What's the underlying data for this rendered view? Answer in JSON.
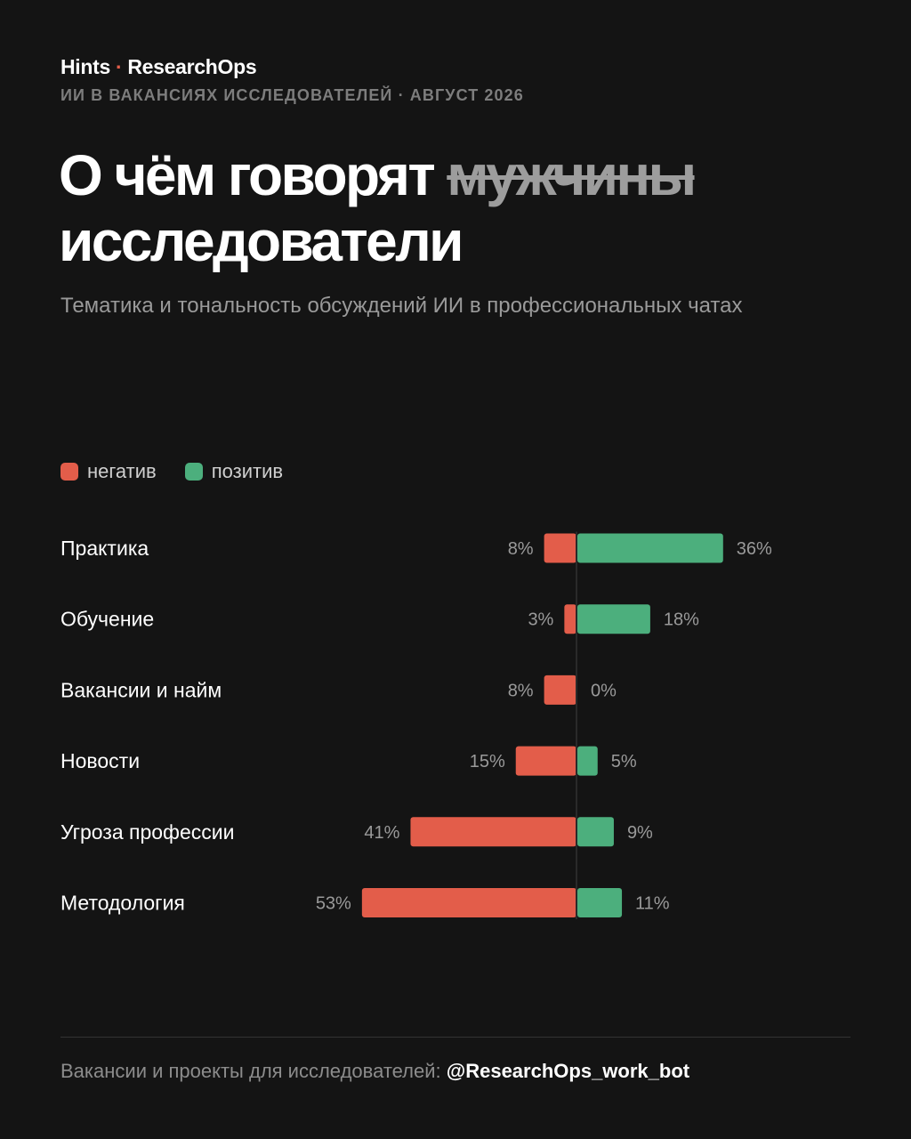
{
  "header": {
    "brand_name": "Hints",
    "brand_separator": "·",
    "brand_product": "ResearchOps",
    "subheader": "ИИ В ВАКАНСИЯХ ИССЛЕДОВАТЕЛЕЙ · АВГУСТ 2026"
  },
  "title": {
    "line1_prefix": "О чём говорят",
    "line1_struck": "мужчины",
    "line2": "исследователи"
  },
  "subtitle": "Тематика и тональность обсуждений ИИ в профессиональных чатах",
  "legend": {
    "negative_label": "негатив",
    "positive_label": "позитив"
  },
  "colors": {
    "negative": "#e35d4a",
    "positive": "#4caf7d",
    "background": "#141414"
  },
  "chart_data": {
    "type": "bar",
    "orientation": "horizontal-diverging",
    "categories": [
      "Практика",
      "Обучение",
      "Вакансии и найм",
      "Новости",
      "Угроза профессии",
      "Методология"
    ],
    "series": [
      {
        "name": "негатив",
        "values": [
          8,
          3,
          8,
          15,
          41,
          53
        ]
      },
      {
        "name": "позитив",
        "values": [
          36,
          18,
          0,
          5,
          9,
          11
        ]
      }
    ],
    "value_labels": {
      "negative": [
        "8%",
        "3%",
        "8%",
        "15%",
        "41%",
        "53%"
      ],
      "positive": [
        "36%",
        "18%",
        "0%",
        "5%",
        "9%",
        "11%"
      ]
    },
    "grid": false,
    "legend_position": "top-left"
  },
  "footer": {
    "text": "Вакансии и проекты для исследователей:",
    "handle": "@ResearchOps_work_bot"
  }
}
